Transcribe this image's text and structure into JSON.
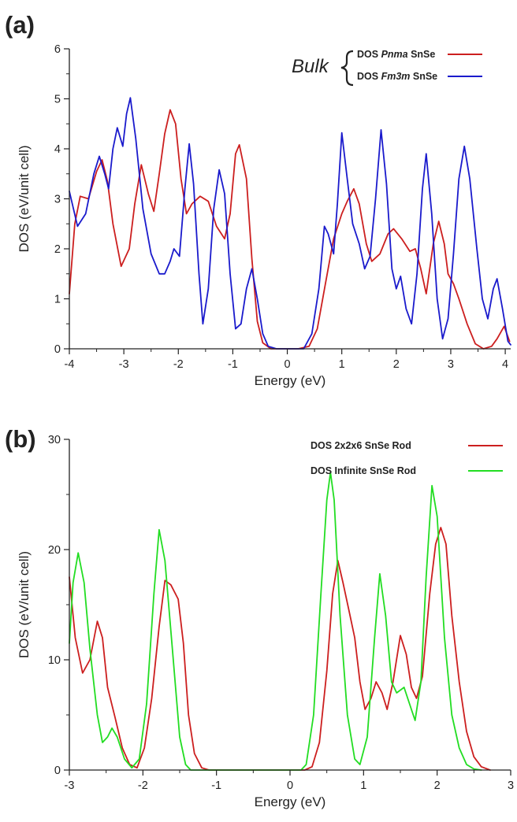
{
  "figure": {
    "panels": [
      {
        "panel_label": "(a)",
        "legend_group_label": "Bulk",
        "legend": [
          {
            "prefix": "DOS ",
            "italic": "Pnma",
            "suffix": " SnSe",
            "color": "#cc1f1f"
          },
          {
            "prefix": "DOS ",
            "italic": "Fm3m",
            "suffix": " SnSe",
            "color": "#1a1acc"
          }
        ]
      },
      {
        "panel_label": "(b)",
        "legend": [
          {
            "prefix": "DOS 2x2x6 SnSe Rod",
            "italic": "",
            "suffix": "",
            "color": "#cc1f1f"
          },
          {
            "prefix": "DOS Infinite SnSe Rod",
            "italic": "",
            "suffix": "",
            "color": "#22dd22"
          }
        ]
      }
    ]
  },
  "chart_data": [
    {
      "type": "line",
      "xlabel": "Energy (eV)",
      "ylabel": "DOS (eV/unit cell)",
      "xlim": [
        -4,
        4.1
      ],
      "ylim": [
        0,
        6
      ],
      "xticks": [
        -4,
        -3,
        -2,
        -1,
        0,
        1,
        2,
        3,
        4
      ],
      "yticks": [
        0,
        1,
        2,
        3,
        4,
        5,
        6
      ],
      "grid": false,
      "legend_position": "top-right",
      "series": [
        {
          "name": "DOS Pnma SnSe",
          "color": "#cc1f1f",
          "points": [
            [
              -4.0,
              1.1
            ],
            [
              -3.9,
              2.5
            ],
            [
              -3.8,
              3.05
            ],
            [
              -3.65,
              3.0
            ],
            [
              -3.5,
              3.55
            ],
            [
              -3.4,
              3.78
            ],
            [
              -3.3,
              3.35
            ],
            [
              -3.2,
              2.5
            ],
            [
              -3.05,
              1.65
            ],
            [
              -2.9,
              2.0
            ],
            [
              -2.8,
              2.9
            ],
            [
              -2.68,
              3.68
            ],
            [
              -2.55,
              3.1
            ],
            [
              -2.45,
              2.75
            ],
            [
              -2.35,
              3.5
            ],
            [
              -2.25,
              4.3
            ],
            [
              -2.15,
              4.78
            ],
            [
              -2.05,
              4.5
            ],
            [
              -1.95,
              3.4
            ],
            [
              -1.85,
              2.7
            ],
            [
              -1.75,
              2.9
            ],
            [
              -1.6,
              3.05
            ],
            [
              -1.45,
              2.95
            ],
            [
              -1.3,
              2.45
            ],
            [
              -1.15,
              2.2
            ],
            [
              -1.05,
              2.7
            ],
            [
              -0.95,
              3.9
            ],
            [
              -0.88,
              4.08
            ],
            [
              -0.75,
              3.4
            ],
            [
              -0.65,
              1.8
            ],
            [
              -0.55,
              0.55
            ],
            [
              -0.45,
              0.12
            ],
            [
              -0.3,
              0.0
            ],
            [
              0.2,
              0.0
            ],
            [
              0.4,
              0.05
            ],
            [
              0.55,
              0.4
            ],
            [
              0.7,
              1.3
            ],
            [
              0.85,
              2.2
            ],
            [
              1.0,
              2.7
            ],
            [
              1.1,
              2.95
            ],
            [
              1.22,
              3.2
            ],
            [
              1.32,
              2.9
            ],
            [
              1.45,
              2.1
            ],
            [
              1.55,
              1.75
            ],
            [
              1.7,
              1.9
            ],
            [
              1.85,
              2.3
            ],
            [
              1.95,
              2.4
            ],
            [
              2.1,
              2.2
            ],
            [
              2.25,
              1.95
            ],
            [
              2.35,
              2.0
            ],
            [
              2.45,
              1.6
            ],
            [
              2.55,
              1.1
            ],
            [
              2.68,
              2.1
            ],
            [
              2.78,
              2.55
            ],
            [
              2.88,
              2.1
            ],
            [
              2.95,
              1.5
            ],
            [
              3.05,
              1.3
            ],
            [
              3.15,
              1.0
            ],
            [
              3.3,
              0.5
            ],
            [
              3.45,
              0.1
            ],
            [
              3.6,
              0.0
            ],
            [
              3.75,
              0.05
            ],
            [
              3.85,
              0.2
            ],
            [
              3.98,
              0.45
            ],
            [
              4.08,
              0.15
            ]
          ]
        },
        {
          "name": "DOS Fm3m SnSe",
          "color": "#1a1acc",
          "points": [
            [
              -4.0,
              3.15
            ],
            [
              -3.85,
              2.45
            ],
            [
              -3.7,
              2.7
            ],
            [
              -3.55,
              3.5
            ],
            [
              -3.45,
              3.85
            ],
            [
              -3.35,
              3.5
            ],
            [
              -3.28,
              3.2
            ],
            [
              -3.2,
              4.0
            ],
            [
              -3.12,
              4.42
            ],
            [
              -3.02,
              4.05
            ],
            [
              -2.95,
              4.7
            ],
            [
              -2.88,
              5.02
            ],
            [
              -2.78,
              4.2
            ],
            [
              -2.65,
              2.8
            ],
            [
              -2.5,
              1.9
            ],
            [
              -2.35,
              1.5
            ],
            [
              -2.25,
              1.5
            ],
            [
              -2.15,
              1.75
            ],
            [
              -2.08,
              2.0
            ],
            [
              -1.98,
              1.85
            ],
            [
              -1.88,
              3.2
            ],
            [
              -1.8,
              4.1
            ],
            [
              -1.72,
              3.3
            ],
            [
              -1.62,
              1.5
            ],
            [
              -1.55,
              0.5
            ],
            [
              -1.45,
              1.2
            ],
            [
              -1.35,
              2.8
            ],
            [
              -1.25,
              3.58
            ],
            [
              -1.15,
              3.1
            ],
            [
              -1.05,
              1.5
            ],
            [
              -0.95,
              0.4
            ],
            [
              -0.85,
              0.5
            ],
            [
              -0.75,
              1.2
            ],
            [
              -0.65,
              1.6
            ],
            [
              -0.55,
              1.0
            ],
            [
              -0.45,
              0.3
            ],
            [
              -0.35,
              0.05
            ],
            [
              -0.2,
              0.0
            ],
            [
              0.3,
              0.0
            ],
            [
              0.45,
              0.3
            ],
            [
              0.58,
              1.2
            ],
            [
              0.68,
              2.45
            ],
            [
              0.75,
              2.3
            ],
            [
              0.85,
              1.9
            ],
            [
              0.92,
              2.9
            ],
            [
              1.0,
              4.32
            ],
            [
              1.1,
              3.4
            ],
            [
              1.2,
              2.5
            ],
            [
              1.32,
              2.1
            ],
            [
              1.42,
              1.6
            ],
            [
              1.52,
              1.85
            ],
            [
              1.62,
              3.0
            ],
            [
              1.72,
              4.38
            ],
            [
              1.82,
              3.3
            ],
            [
              1.92,
              1.6
            ],
            [
              2.0,
              1.2
            ],
            [
              2.08,
              1.45
            ],
            [
              2.18,
              0.8
            ],
            [
              2.28,
              0.5
            ],
            [
              2.38,
              1.5
            ],
            [
              2.48,
              3.2
            ],
            [
              2.55,
              3.9
            ],
            [
              2.65,
              2.7
            ],
            [
              2.75,
              1.0
            ],
            [
              2.85,
              0.2
            ],
            [
              2.95,
              0.6
            ],
            [
              3.05,
              1.9
            ],
            [
              3.15,
              3.4
            ],
            [
              3.25,
              4.05
            ],
            [
              3.35,
              3.4
            ],
            [
              3.48,
              2.0
            ],
            [
              3.58,
              1.0
            ],
            [
              3.68,
              0.6
            ],
            [
              3.78,
              1.2
            ],
            [
              3.85,
              1.4
            ],
            [
              3.95,
              0.8
            ],
            [
              4.05,
              0.15
            ],
            [
              4.1,
              0.08
            ]
          ]
        }
      ]
    },
    {
      "type": "line",
      "xlabel": "Energy (eV)",
      "ylabel": "DOS (eV/unit cell)",
      "xlim": [
        -3,
        3
      ],
      "ylim": [
        0,
        30
      ],
      "xticks": [
        -3,
        -2,
        -1,
        0,
        1,
        2,
        3
      ],
      "yticks": [
        0,
        10,
        20,
        30
      ],
      "grid": false,
      "legend_position": "top-right",
      "series": [
        {
          "name": "DOS 2x2x6 SnSe Rod",
          "color": "#cc1f1f",
          "points": [
            [
              -3.0,
              17.5
            ],
            [
              -2.92,
              12.0
            ],
            [
              -2.82,
              8.8
            ],
            [
              -2.72,
              10.0
            ],
            [
              -2.62,
              13.5
            ],
            [
              -2.55,
              12.0
            ],
            [
              -2.48,
              7.5
            ],
            [
              -2.38,
              4.8
            ],
            [
              -2.28,
              2.0
            ],
            [
              -2.18,
              0.5
            ],
            [
              -2.08,
              0.2
            ],
            [
              -1.98,
              2.0
            ],
            [
              -1.88,
              6.5
            ],
            [
              -1.78,
              13.0
            ],
            [
              -1.7,
              17.2
            ],
            [
              -1.62,
              16.8
            ],
            [
              -1.52,
              15.5
            ],
            [
              -1.45,
              11.5
            ],
            [
              -1.38,
              5.0
            ],
            [
              -1.3,
              1.5
            ],
            [
              -1.2,
              0.2
            ],
            [
              -1.1,
              0.0
            ],
            [
              0.2,
              0.0
            ],
            [
              0.3,
              0.3
            ],
            [
              0.4,
              2.5
            ],
            [
              0.5,
              9.0
            ],
            [
              0.58,
              16.0
            ],
            [
              0.65,
              19.0
            ],
            [
              0.72,
              17.0
            ],
            [
              0.8,
              14.5
            ],
            [
              0.88,
              12.0
            ],
            [
              0.95,
              8.0
            ],
            [
              1.02,
              5.5
            ],
            [
              1.1,
              6.5
            ],
            [
              1.17,
              8.0
            ],
            [
              1.25,
              7.0
            ],
            [
              1.32,
              5.5
            ],
            [
              1.4,
              8.0
            ],
            [
              1.5,
              12.2
            ],
            [
              1.58,
              10.5
            ],
            [
              1.65,
              7.5
            ],
            [
              1.72,
              6.5
            ],
            [
              1.8,
              8.5
            ],
            [
              1.9,
              16.0
            ],
            [
              1.98,
              20.5
            ],
            [
              2.05,
              22.0
            ],
            [
              2.12,
              20.5
            ],
            [
              2.2,
              14.0
            ],
            [
              2.3,
              8.0
            ],
            [
              2.4,
              3.5
            ],
            [
              2.5,
              1.2
            ],
            [
              2.6,
              0.3
            ],
            [
              2.72,
              0.0
            ]
          ]
        },
        {
          "name": "DOS Infinite SnSe Rod",
          "color": "#22dd22",
          "points": [
            [
              -3.0,
              11.5
            ],
            [
              -2.95,
              17.0
            ],
            [
              -2.88,
              19.7
            ],
            [
              -2.8,
              17.0
            ],
            [
              -2.72,
              11.0
            ],
            [
              -2.62,
              5.0
            ],
            [
              -2.55,
              2.5
            ],
            [
              -2.48,
              3.0
            ],
            [
              -2.42,
              3.8
            ],
            [
              -2.35,
              3.0
            ],
            [
              -2.25,
              1.0
            ],
            [
              -2.15,
              0.2
            ],
            [
              -2.05,
              1.0
            ],
            [
              -1.95,
              6.0
            ],
            [
              -1.85,
              16.0
            ],
            [
              -1.78,
              21.8
            ],
            [
              -1.7,
              19.0
            ],
            [
              -1.6,
              11.0
            ],
            [
              -1.5,
              3.0
            ],
            [
              -1.42,
              0.5
            ],
            [
              -1.35,
              0.0
            ],
            [
              0.15,
              0.0
            ],
            [
              0.22,
              0.5
            ],
            [
              0.32,
              5.0
            ],
            [
              0.42,
              16.0
            ],
            [
              0.5,
              24.5
            ],
            [
              0.55,
              27.0
            ],
            [
              0.6,
              24.5
            ],
            [
              0.68,
              14.0
            ],
            [
              0.78,
              5.0
            ],
            [
              0.88,
              1.0
            ],
            [
              0.95,
              0.5
            ],
            [
              1.05,
              3.0
            ],
            [
              1.15,
              12.0
            ],
            [
              1.22,
              17.8
            ],
            [
              1.3,
              14.0
            ],
            [
              1.38,
              8.0
            ],
            [
              1.45,
              7.0
            ],
            [
              1.55,
              7.5
            ],
            [
              1.65,
              5.5
            ],
            [
              1.7,
              4.5
            ],
            [
              1.78,
              8.0
            ],
            [
              1.85,
              17.5
            ],
            [
              1.93,
              25.8
            ],
            [
              2.0,
              23.0
            ],
            [
              2.1,
              12.0
            ],
            [
              2.2,
              5.0
            ],
            [
              2.3,
              2.0
            ],
            [
              2.4,
              0.5
            ],
            [
              2.5,
              0.1
            ],
            [
              2.6,
              0.0
            ]
          ]
        }
      ]
    }
  ]
}
